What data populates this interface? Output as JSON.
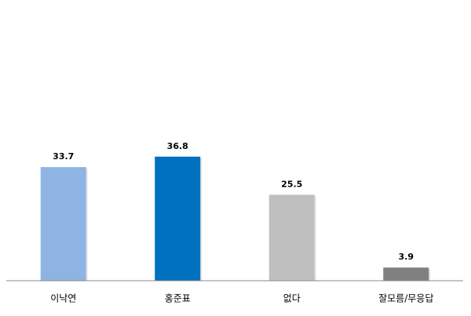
{
  "chart_data": {
    "type": "bar",
    "categories": [
      "이낙연",
      "홍준표",
      "없다",
      "잘모름/무응답"
    ],
    "values": [
      33.7,
      36.8,
      25.5,
      3.9
    ],
    "colors": [
      "#8db4e3",
      "#0070c0",
      "#bfbfbf",
      "#808080"
    ],
    "ylim": [
      0,
      40
    ]
  }
}
